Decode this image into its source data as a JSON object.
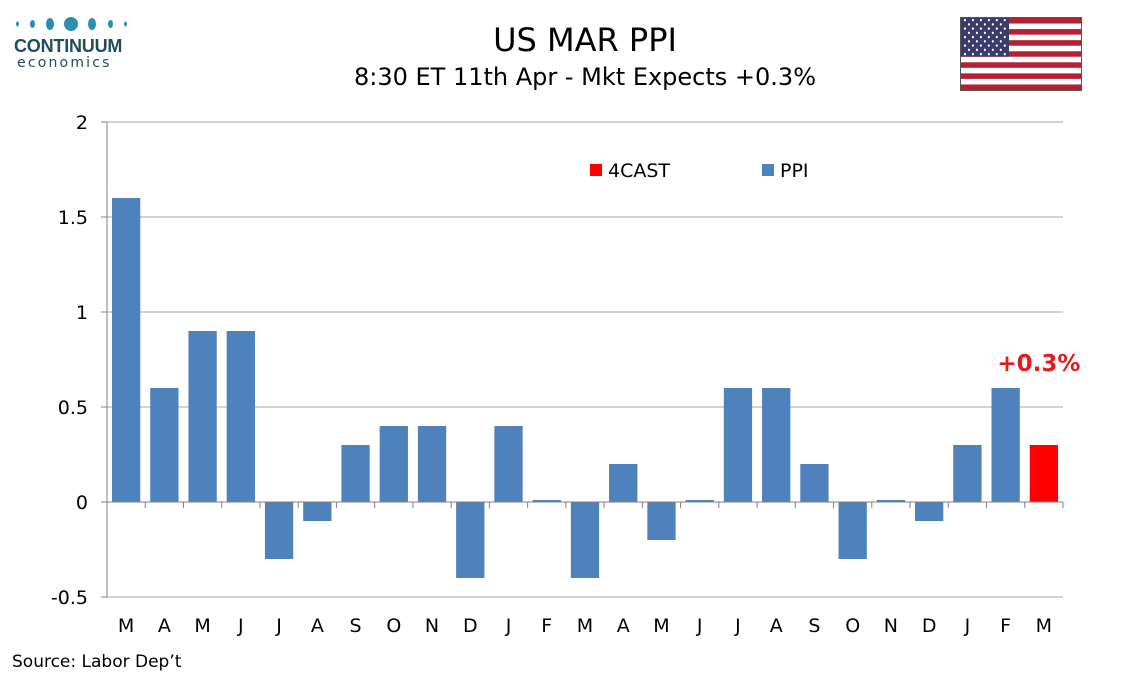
{
  "brand": {
    "name": "CONTINUUM",
    "sub": "economics"
  },
  "header": {
    "title": "US MAR PPI",
    "subtitle": "8:30 ET 11th Apr - Mkt Expects +0.3%"
  },
  "footer": {
    "source": "Source: Labor Dep’t"
  },
  "colors": {
    "ppi": "#4f81bd",
    "forecast": "#ff0000",
    "annotation": "#e41a1c",
    "grid": "#a6a6a6"
  },
  "flag_icon": "us-flag-icon",
  "chart_data": {
    "type": "bar",
    "categories": [
      "M",
      "A",
      "M",
      "J",
      "J",
      "A",
      "S",
      "O",
      "N",
      "D",
      "J",
      "F",
      "M",
      "A",
      "M",
      "J",
      "J",
      "A",
      "S",
      "O",
      "N",
      "D",
      "J",
      "F",
      "M"
    ],
    "series": [
      {
        "name": "PPI",
        "values": [
          1.6,
          0.6,
          0.9,
          0.9,
          -0.3,
          -0.1,
          0.3,
          0.4,
          0.4,
          -0.4,
          0.4,
          0.01,
          -0.4,
          0.2,
          -0.2,
          0.01,
          0.6,
          0.6,
          0.2,
          -0.3,
          0.01,
          -0.1,
          0.3,
          0.6,
          null
        ]
      },
      {
        "name": "4CAST",
        "values": [
          null,
          null,
          null,
          null,
          null,
          null,
          null,
          null,
          null,
          null,
          null,
          null,
          null,
          null,
          null,
          null,
          null,
          null,
          null,
          null,
          null,
          null,
          null,
          null,
          0.3
        ]
      }
    ],
    "ylim": [
      -0.5,
      2
    ],
    "yticks": [
      -0.5,
      0,
      0.5,
      1,
      1.5,
      2
    ],
    "ytick_labels": [
      "-0.5",
      "0",
      "0.5",
      "1",
      "1.5",
      "2"
    ],
    "grid": true,
    "legend": {
      "placement": "top-right",
      "entries": [
        "4CAST",
        "PPI"
      ]
    },
    "annotations": [
      {
        "category_index": 24,
        "text": "+0.3%"
      }
    ]
  }
}
